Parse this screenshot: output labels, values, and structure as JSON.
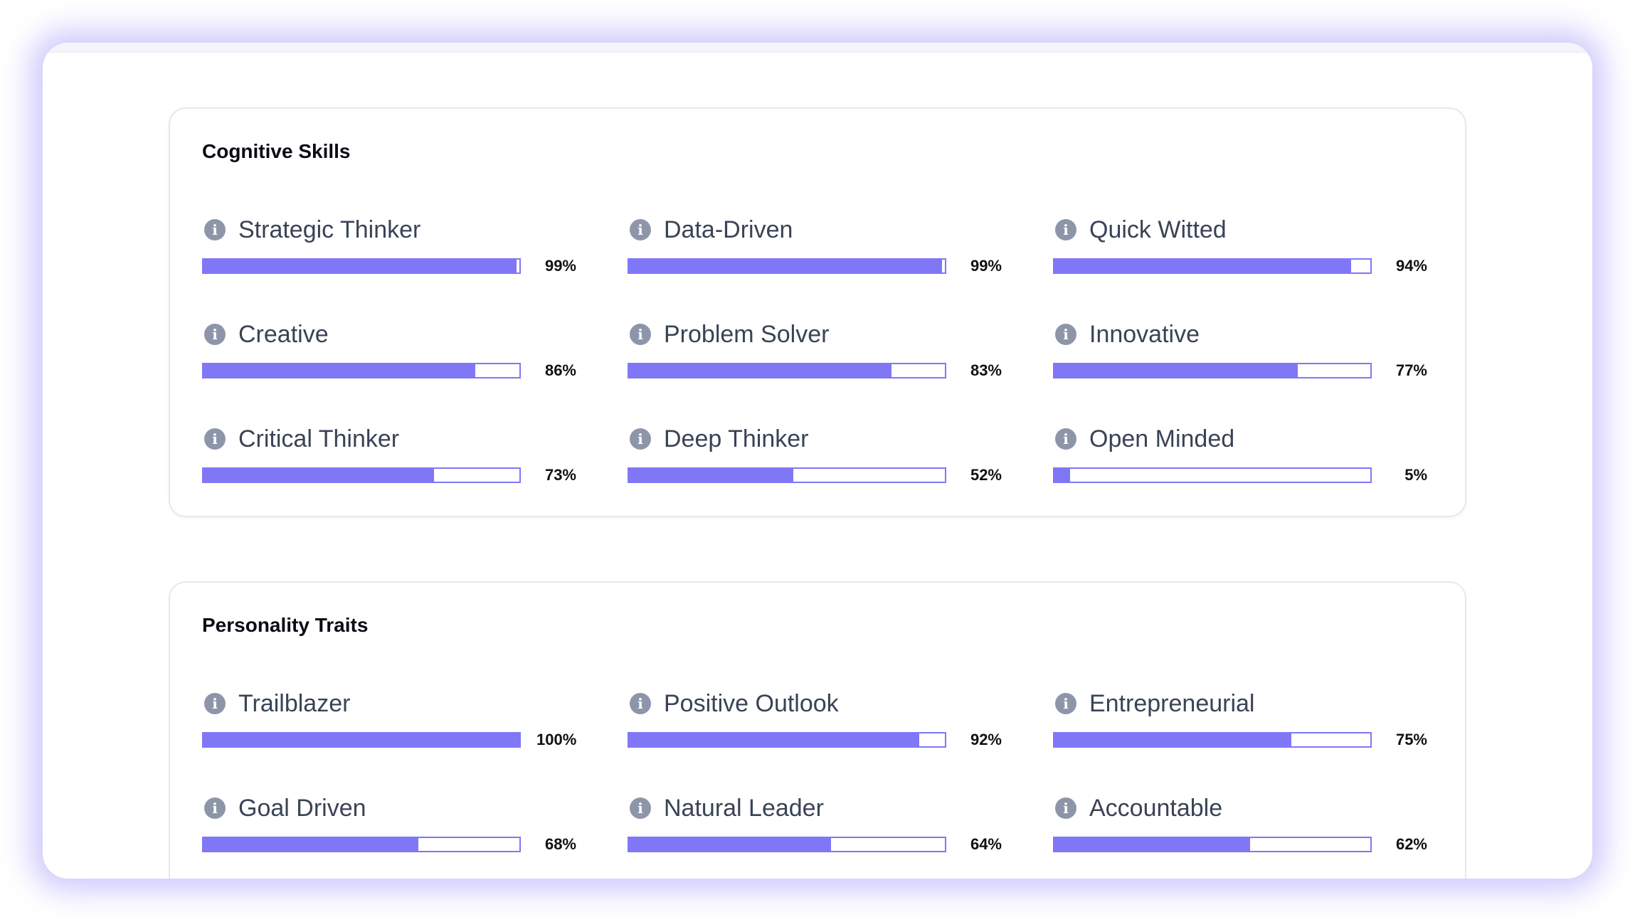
{
  "colors": {
    "bar_fill": "#8077f7",
    "icon": "#8d96a9",
    "label": "#394356"
  },
  "sections": [
    {
      "title": "Cognitive Skills",
      "items": [
        {
          "label": "Strategic Thinker",
          "value": 99,
          "pct": "99%"
        },
        {
          "label": "Data-Driven",
          "value": 99,
          "pct": "99%"
        },
        {
          "label": "Quick Witted",
          "value": 94,
          "pct": "94%"
        },
        {
          "label": "Creative",
          "value": 86,
          "pct": "86%"
        },
        {
          "label": "Problem Solver",
          "value": 83,
          "pct": "83%"
        },
        {
          "label": "Innovative",
          "value": 77,
          "pct": "77%"
        },
        {
          "label": "Critical Thinker",
          "value": 73,
          "pct": "73%"
        },
        {
          "label": "Deep Thinker",
          "value": 52,
          "pct": "52%"
        },
        {
          "label": "Open Minded",
          "value": 5,
          "pct": "5%"
        }
      ]
    },
    {
      "title": "Personality Traits",
      "items": [
        {
          "label": "Trailblazer",
          "value": 100,
          "pct": "100%"
        },
        {
          "label": "Positive Outlook",
          "value": 92,
          "pct": "92%"
        },
        {
          "label": "Entrepreneurial",
          "value": 75,
          "pct": "75%"
        },
        {
          "label": "Goal Driven",
          "value": 68,
          "pct": "68%"
        },
        {
          "label": "Natural Leader",
          "value": 64,
          "pct": "64%"
        },
        {
          "label": "Accountable",
          "value": 62,
          "pct": "62%"
        }
      ]
    }
  ],
  "info_icon": "info-icon"
}
